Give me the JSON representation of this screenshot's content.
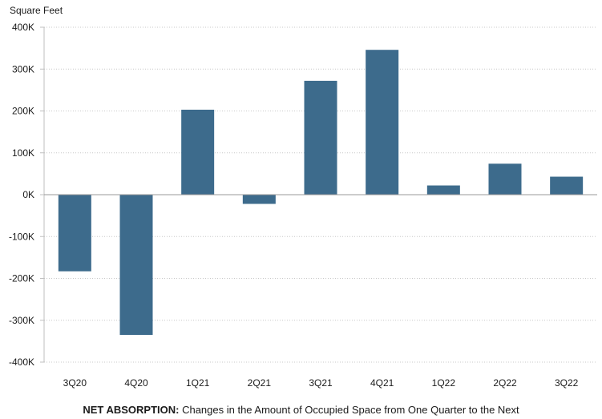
{
  "chart_data": {
    "type": "bar",
    "ylabel": "Square Feet",
    "categories": [
      "3Q20",
      "4Q20",
      "1Q21",
      "2Q21",
      "3Q21",
      "4Q21",
      "1Q22",
      "2Q22",
      "3Q22"
    ],
    "values": [
      -183000,
      -335000,
      203000,
      -22000,
      272000,
      346000,
      22000,
      74000,
      43000
    ],
    "ylim": [
      -400000,
      400000
    ],
    "yticks": [
      400000,
      300000,
      200000,
      100000,
      0,
      -100000,
      -200000,
      -300000,
      -400000
    ],
    "ytick_labels": [
      "400K",
      "300K",
      "200K",
      "100K",
      "0K",
      "-100K",
      "-200K",
      "-300K",
      "-400K"
    ],
    "bar_color": "#3d6b8c",
    "grid": true,
    "legend": "none",
    "caption": {
      "bold": "NET ABSORPTION:",
      "text": " Changes in the Amount of Occupied Space from One Quarter to the Next"
    }
  }
}
